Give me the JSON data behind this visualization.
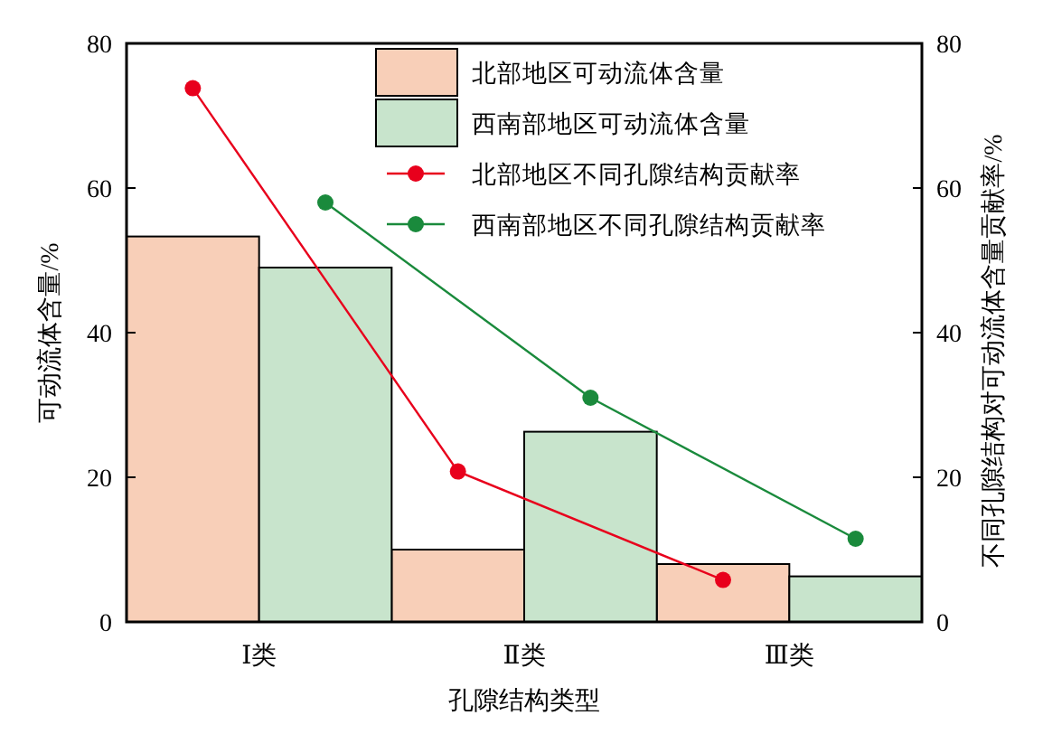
{
  "chart_data": {
    "type": "bar",
    "xlabel": "孔隙结构类型",
    "ylabel": "可动流体含量/%",
    "y2label": "不同孔隙结构对可动流体含量贡献率/%",
    "categories": [
      "Ⅰ类",
      "Ⅱ类",
      "Ⅲ类"
    ],
    "series": [
      {
        "name": "北部地区可动流体含量",
        "color": "#f8cfb8",
        "values": [
          53.3,
          10,
          8
        ]
      },
      {
        "name": "西南部地区可动流体含量",
        "color": "#c8e4cc",
        "values": [
          49,
          26.3,
          6.3
        ]
      },
      {
        "name": "北部地区不同孔隙结构贡献率",
        "type": "line",
        "axis": "y2",
        "color": "#e8001c",
        "values": [
          73.8,
          20.8,
          5.8
        ]
      },
      {
        "name": "西南部地区不同孔隙结构贡献率",
        "type": "line",
        "axis": "y2",
        "color": "#1a8a3c",
        "values": [
          58,
          31,
          11.5
        ]
      }
    ],
    "ylim": [
      0,
      80
    ],
    "yticks": [
      0,
      20,
      40,
      60,
      80
    ],
    "y2lim": [
      0,
      80
    ],
    "y2ticks": [
      0,
      20,
      40,
      60,
      80
    ],
    "legend": "top right",
    "marker": "circle"
  }
}
